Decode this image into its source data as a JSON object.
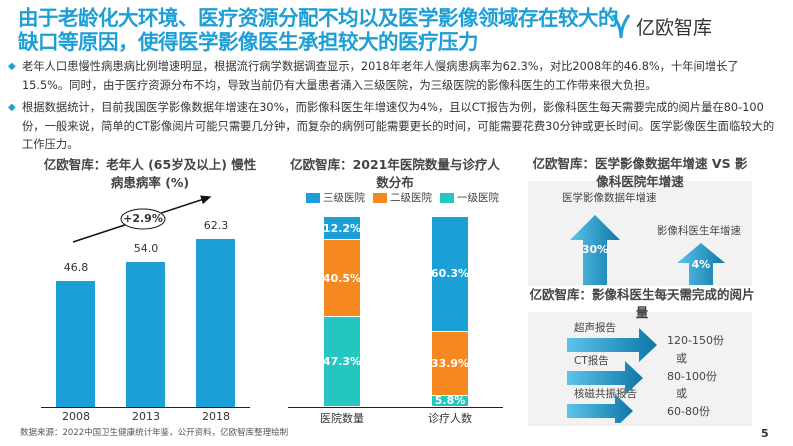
{
  "title": "由于老龄化大环境、医疗资源分配不均以及医学影像领域存在较大的缺口等原因，使得医学影像医生承担较大的医疗压力",
  "logo": "亿欧智库",
  "bullets": [
    "老年人口患慢性病患病比例增速明显，根据流行病学数据调查显示，2018年老年人慢病患病率为62.3%，对比2008年的46.8%，十年间增长了15.5%。同时，由于医疗资源分布不均，导致当前仍有大量患者涌入三级医院，为三级医院的影像科医生的工作带来很大负担。",
    "根据数据统计，目前我国医学影像数据年增速在30%，而影像科医生年增速仅为4%，且以CT报告为例，影像科医生每天需要完成的阅片量在80-100份，一般来说，简单的CT影像阅片可能只需要几分钟，而复杂的病例可能需要更长的时间，可能需要花费30分钟或更长时间。医学影像医生面临较大的工作压力。"
  ],
  "chart_data": [
    {
      "type": "bar",
      "title": "亿欧智库：老年人 (65岁及以上) 慢性病患病率 (%)",
      "categories": [
        "2008",
        "2013",
        "2018"
      ],
      "values": [
        46.8,
        54.0,
        62.3
      ],
      "labels": [
        "46.8",
        "54.0",
        "62.3"
      ],
      "annotation": "+2.9%",
      "color": "#1c9fd6"
    },
    {
      "type": "bar",
      "stacked": true,
      "title": "亿欧智库：2021年医院数量与诊疗人数分布",
      "categories": [
        "医院数量",
        "诊疗人数"
      ],
      "legend": [
        "三级医院",
        "二级医院",
        "一级医院"
      ],
      "colors": [
        "#1c9fd6",
        "#f5891f",
        "#25c5c0"
      ],
      "series": [
        {
          "name": "三级医院",
          "values": [
            12.2,
            60.3
          ],
          "labels": [
            "12.2%",
            "60.3%"
          ]
        },
        {
          "name": "二级医院",
          "values": [
            40.5,
            33.9
          ],
          "labels": [
            "40.5%",
            "33.9%"
          ]
        },
        {
          "name": "一级医院",
          "values": [
            47.3,
            5.8
          ],
          "labels": [
            "47.3%",
            "5.8%"
          ]
        }
      ]
    }
  ],
  "growth": {
    "title": "亿欧智库：医学影像数据年增速 VS 影像科医院年增速",
    "items": [
      {
        "label": "医学影像数据年增速",
        "value": "30%"
      },
      {
        "label": "影像科医生年增速",
        "value": "4%"
      }
    ]
  },
  "reading": {
    "title": "亿欧智库：影像科医生每天需完成的阅片量",
    "items": [
      {
        "label": "超声报告",
        "value": "120-150份"
      },
      {
        "label": "CT报告",
        "value": "80-100份"
      },
      {
        "label": "核磁共振报告",
        "value": "60-80份"
      }
    ],
    "or": "或"
  },
  "source": "数据来源：2022中国卫生健康统计年鉴，公开资料，亿欧智库整理绘制",
  "page_number": "5"
}
